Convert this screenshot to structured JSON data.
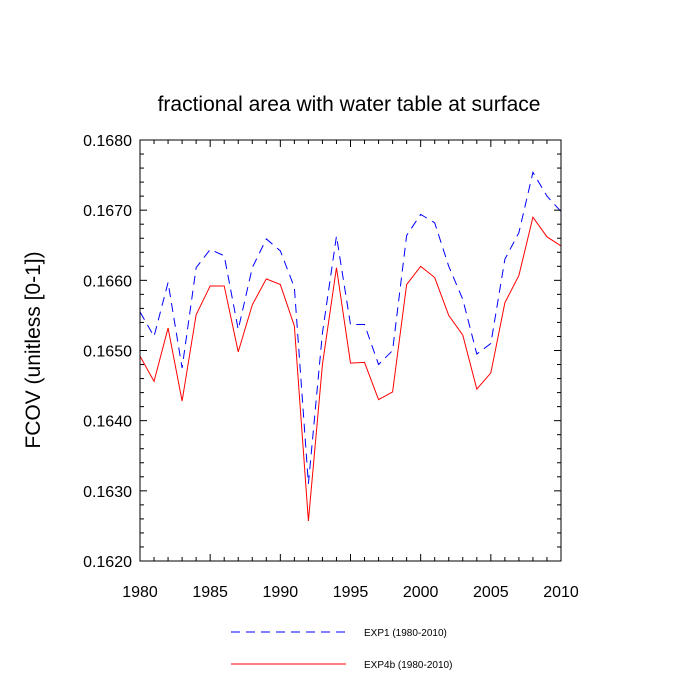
{
  "chart_data": {
    "type": "line",
    "title": "fractional area with water table at surface",
    "xlabel": "",
    "ylabel": "FCOV  (unitless [0-1])",
    "xlim": [
      1980,
      2010
    ],
    "ylim": [
      0.162,
      0.168
    ],
    "x_ticks": [
      "1980",
      "1985",
      "1990",
      "1995",
      "2000",
      "2005",
      "2010"
    ],
    "y_ticks": [
      "0.1620",
      "0.1630",
      "0.1640",
      "0.1650",
      "0.1660",
      "0.1670",
      "0.1680"
    ],
    "x": [
      1980,
      1981,
      1982,
      1983,
      1984,
      1985,
      1986,
      1987,
      1988,
      1989,
      1990,
      1991,
      1992,
      1993,
      1994,
      1995,
      1996,
      1997,
      1998,
      1999,
      2000,
      2001,
      2002,
      2003,
      2004,
      2005,
      2006,
      2007,
      2008,
      2009,
      2010
    ],
    "series": [
      {
        "name": "EXP1 (1980-2010)",
        "color": "#0000ff",
        "dash": "dashed",
        "values": [
          0.16555,
          0.1652,
          0.16597,
          0.16475,
          0.16618,
          0.16644,
          0.16635,
          0.1653,
          0.16618,
          0.16659,
          0.16642,
          0.1659,
          0.1631,
          0.16525,
          0.16663,
          0.16537,
          0.16537,
          0.1648,
          0.165,
          0.16664,
          0.16694,
          0.16682,
          0.1662,
          0.16573,
          0.16495,
          0.1651,
          0.1663,
          0.16668,
          0.16754,
          0.1672,
          0.16698
        ]
      },
      {
        "name": "EXP4b (1980-2010)",
        "color": "#ff0000",
        "dash": "solid",
        "values": [
          0.16492,
          0.16456,
          0.16532,
          0.16428,
          0.16551,
          0.16592,
          0.16592,
          0.16498,
          0.16565,
          0.16602,
          0.16594,
          0.16535,
          0.16257,
          0.1648,
          0.16618,
          0.16482,
          0.16483,
          0.1643,
          0.16441,
          0.16594,
          0.1662,
          0.16604,
          0.1655,
          0.16522,
          0.16445,
          0.16468,
          0.16568,
          0.16607,
          0.1669,
          0.16662,
          0.16649
        ]
      }
    ]
  }
}
